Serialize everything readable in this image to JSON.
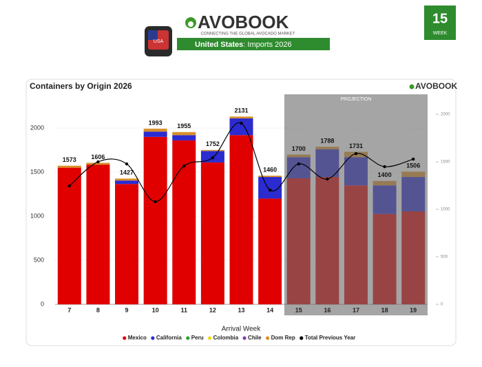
{
  "header": {
    "logo": "AVOBOOK",
    "tagline": "CONNECTING THE GLOBAL AVOCADO MARKET",
    "country": "United States",
    "subtitle": "Imports 2026",
    "flag_label": "USA",
    "week_number": "15",
    "week_label": "WEEK"
  },
  "chart_data": {
    "type": "bar",
    "stacked": true,
    "title": "Containers by Origin 2026",
    "logo": "AVOBOOK",
    "x_label": "Arrival Week",
    "categories": [
      "7",
      "8",
      "9",
      "10",
      "11",
      "12",
      "13",
      "14",
      "15",
      "16",
      "17",
      "18",
      "19"
    ],
    "projection": {
      "label": "PROJECTION",
      "from": "15",
      "to": "19"
    },
    "series": [
      {
        "name": "Mexico",
        "color": "#e00000",
        "values": [
          1550,
          1585,
          1365,
          1900,
          1860,
          1610,
          1920,
          1200,
          1430,
          1445,
          1350,
          1025,
          1055
        ]
      },
      {
        "name": "California",
        "color": "#2b2bd0",
        "values": [
          0,
          0,
          40,
          60,
          60,
          130,
          190,
          245,
          240,
          313,
          320,
          325,
          390
        ]
      },
      {
        "name": "Peru",
        "color": "#2ca02c",
        "values": [
          0,
          0,
          0,
          0,
          0,
          0,
          0,
          0,
          0,
          0,
          0,
          0,
          0
        ]
      },
      {
        "name": "Colombia",
        "color": "#f0d820",
        "values": [
          0,
          0,
          0,
          0,
          0,
          0,
          0,
          0,
          0,
          0,
          0,
          0,
          0
        ]
      },
      {
        "name": "Chile",
        "color": "#7b3fb0",
        "values": [
          0,
          0,
          0,
          0,
          0,
          0,
          0,
          0,
          0,
          0,
          0,
          0,
          0
        ]
      },
      {
        "name": "Dom Rep",
        "color": "#d8902a",
        "values": [
          23,
          21,
          22,
          33,
          35,
          12,
          21,
          15,
          30,
          30,
          61,
          50,
          61
        ]
      },
      {
        "name": "Total Previous Year",
        "type": "line",
        "axis": "y2",
        "color": "#000000",
        "values": [
          1246,
          1500,
          1478,
          1080,
          1457,
          1543,
          1906,
          1203,
          1478,
          1319,
          1587,
          1449,
          1529
        ]
      }
    ],
    "totals": [
      1573,
      1606,
      1427,
      1993,
      1955,
      1752,
      2131,
      1460,
      1700,
      1788,
      1731,
      1400,
      1506
    ],
    "ylim": [
      0,
      2336
    ],
    "yticks": [
      0,
      500,
      1000,
      1500,
      2000
    ],
    "y2lim": [
      0,
      2167
    ],
    "y2ticks": [
      0,
      500,
      1000,
      1500,
      2000
    ],
    "grid": true,
    "legend": "bottom"
  }
}
